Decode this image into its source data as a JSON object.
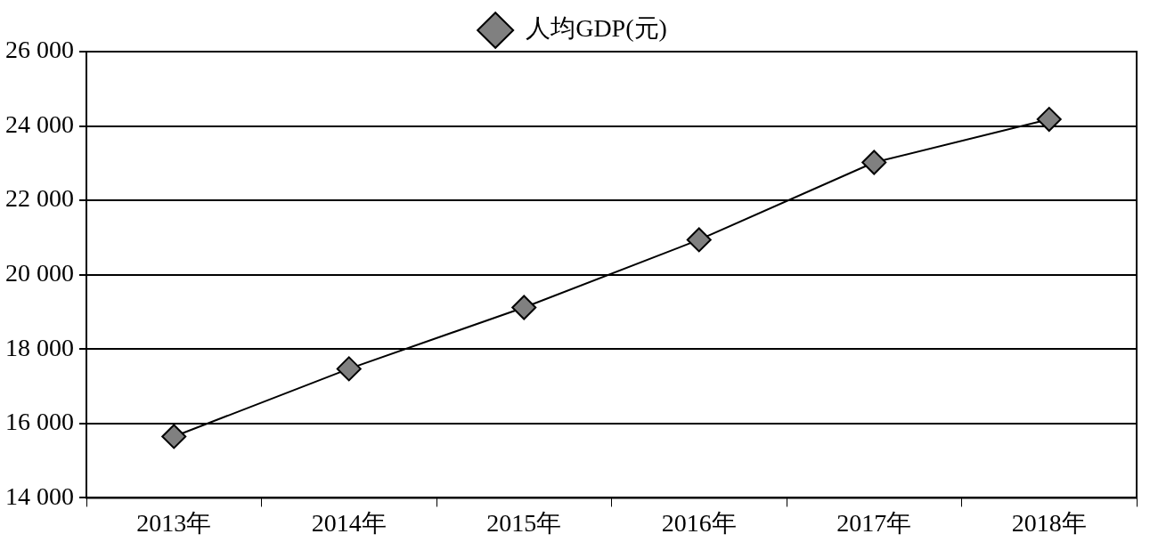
{
  "chart_data": {
    "type": "line",
    "categories": [
      "2013年",
      "2014年",
      "2015年",
      "2016年",
      "2017年",
      "2018年"
    ],
    "series": [
      {
        "name": "人均GDP(元)",
        "color": "#000000",
        "values": [
          15650,
          17470,
          19120,
          20940,
          23020,
          24180
        ]
      }
    ],
    "ylim": [
      14000,
      26000
    ],
    "yticks": [
      {
        "value": 14000,
        "label": "14 000"
      },
      {
        "value": 16000,
        "label": "16 000"
      },
      {
        "value": 18000,
        "label": "18 000"
      },
      {
        "value": 20000,
        "label": "20 000"
      },
      {
        "value": 22000,
        "label": "22 000"
      },
      {
        "value": 24000,
        "label": "24 000"
      },
      {
        "value": 26000,
        "label": "26 000"
      }
    ],
    "grid": "y",
    "legend": "top",
    "marker": "diamond",
    "line_style": "solid"
  }
}
